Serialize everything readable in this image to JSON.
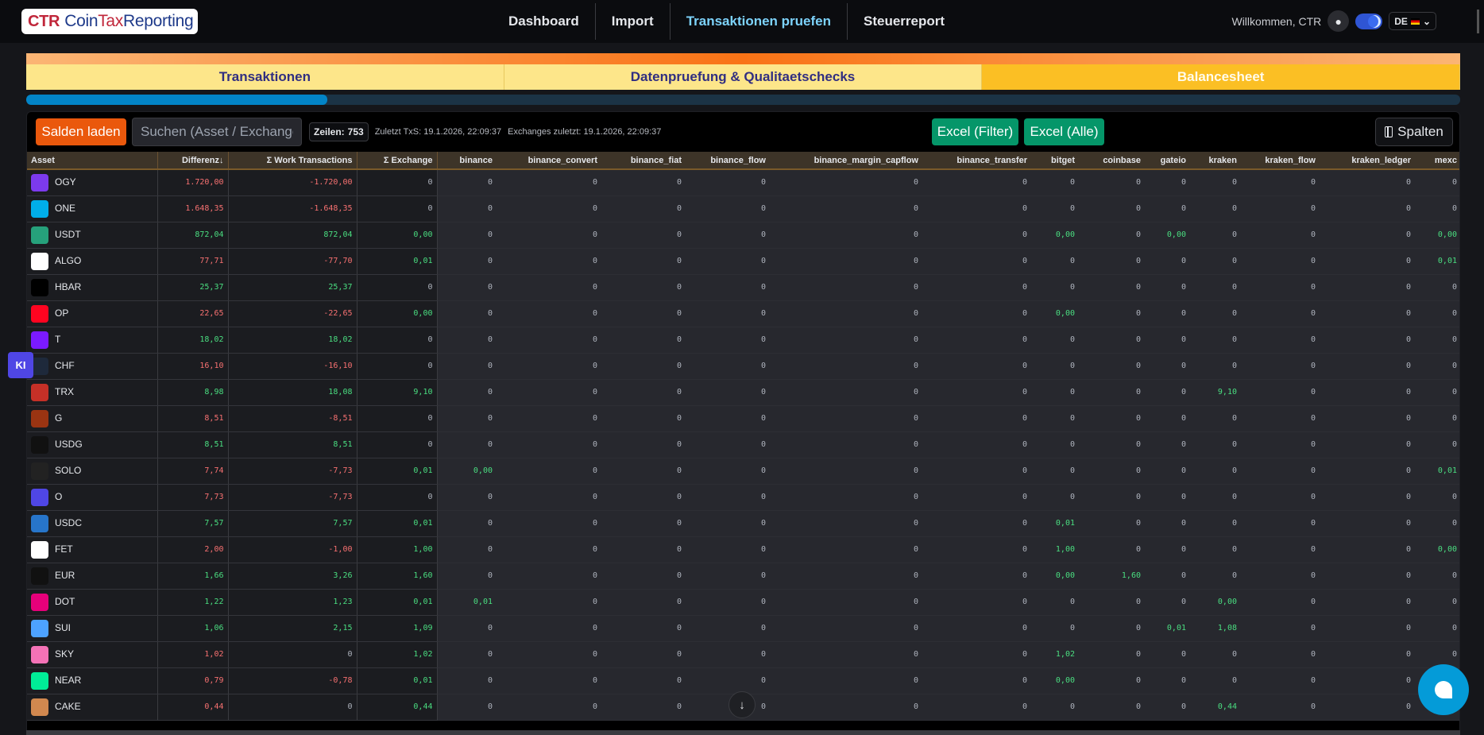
{
  "header": {
    "logo": "CoinTaxReporting",
    "nav": [
      "Dashboard",
      "Import",
      "Transaktionen pruefen",
      "Steuerreport"
    ],
    "active_nav": 2,
    "welcome": "Willkommen, CTR",
    "language": "DE"
  },
  "tabs": [
    "Transaktionen",
    "Datenpruefung & Qualitaetschecks",
    "Balancesheet"
  ],
  "active_tab": 2,
  "progress_percent": 21,
  "toolbar": {
    "load_label": "Salden laden",
    "search_placeholder": "Suchen (Asset / Exchange)",
    "rows_label": "Zeilen:",
    "rows_count": "753",
    "last_txs": "Zuletzt TxS: 19.1.2026, 22:09:37",
    "last_exchanges": "Exchanges zuletzt: 19.1.2026, 22:09:37",
    "excel_filter": "Excel (Filter)",
    "excel_all": "Excel (Alle)",
    "columns": "Spalten"
  },
  "ki_label": "KI",
  "scroll_down": "↓",
  "colors": {
    "positive": "#4ade80",
    "negative": "#f87171",
    "accent": "#ea580c",
    "excel": "#059669"
  },
  "table": {
    "columns": [
      "Asset",
      "Differenz↓",
      "Σ Work Transactions",
      "Σ Exchange",
      "binance",
      "binance_convert",
      "binance_fiat",
      "binance_flow",
      "binance_margin_capflow",
      "binance_transfer",
      "bitget",
      "coinbase",
      "gateio",
      "kraken",
      "kraken_flow",
      "kraken_ledger",
      "mexc"
    ],
    "rows": [
      {
        "asset": "OGY",
        "icon": "#7c3aed",
        "diff": "1.720,00",
        "neg": true,
        "work": "-1.720,00",
        "ex": "0",
        "cells": [
          "0",
          "0",
          "0",
          "0",
          "0",
          "0",
          "0",
          "0",
          "0",
          "0",
          "0",
          "0",
          "0"
        ]
      },
      {
        "asset": "ONE",
        "icon": "#00aee9",
        "diff": "1.648,35",
        "neg": true,
        "work": "-1.648,35",
        "ex": "0",
        "cells": [
          "0",
          "0",
          "0",
          "0",
          "0",
          "0",
          "0",
          "0",
          "0",
          "0",
          "0",
          "0",
          "0"
        ]
      },
      {
        "asset": "USDT",
        "icon": "#26a17b",
        "diff": "872,04",
        "neg": false,
        "work": "872,04",
        "ex": "0,00",
        "cells": [
          "0",
          "0",
          "0",
          "0",
          "0",
          "0",
          "0,00",
          "0",
          "0,00",
          "0",
          "0",
          "0",
          "0,00"
        ]
      },
      {
        "asset": "ALGO",
        "icon": "#ffffff",
        "diff": "77,71",
        "neg": true,
        "work": "-77,70",
        "ex": "0,01",
        "cells": [
          "0",
          "0",
          "0",
          "0",
          "0",
          "0",
          "0",
          "0",
          "0",
          "0",
          "0",
          "0",
          "0,01"
        ]
      },
      {
        "asset": "HBAR",
        "icon": "#000000",
        "diff": "25,37",
        "neg": false,
        "work": "25,37",
        "ex": "0",
        "cells": [
          "0",
          "0",
          "0",
          "0",
          "0",
          "0",
          "0",
          "0",
          "0",
          "0",
          "0",
          "0",
          "0"
        ]
      },
      {
        "asset": "OP",
        "icon": "#ff0420",
        "diff": "22,65",
        "neg": true,
        "work": "-22,65",
        "ex": "0,00",
        "cells": [
          "0",
          "0",
          "0",
          "0",
          "0",
          "0",
          "0,00",
          "0",
          "0",
          "0",
          "0",
          "0",
          "0"
        ]
      },
      {
        "asset": "T",
        "icon": "#7b1aff",
        "diff": "18,02",
        "neg": false,
        "work": "18,02",
        "ex": "0",
        "cells": [
          "0",
          "0",
          "0",
          "0",
          "0",
          "0",
          "0",
          "0",
          "0",
          "0",
          "0",
          "0",
          "0"
        ]
      },
      {
        "asset": "CHF",
        "icon": "#1e293b",
        "diff": "16,10",
        "neg": true,
        "work": "-16,10",
        "ex": "0",
        "cells": [
          "0",
          "0",
          "0",
          "0",
          "0",
          "0",
          "0",
          "0",
          "0",
          "0",
          "0",
          "0",
          "0"
        ]
      },
      {
        "asset": "TRX",
        "icon": "#c53027",
        "diff": "8,98",
        "neg": false,
        "work": "18,08",
        "ex": "9,10",
        "cells": [
          "0",
          "0",
          "0",
          "0",
          "0",
          "0",
          "0",
          "0",
          "0",
          "9,10",
          "0",
          "0",
          "0"
        ]
      },
      {
        "asset": "G",
        "icon": "#9a3412",
        "diff": "8,51",
        "neg": true,
        "work": "-8,51",
        "ex": "0",
        "cells": [
          "0",
          "0",
          "0",
          "0",
          "0",
          "0",
          "0",
          "0",
          "0",
          "0",
          "0",
          "0",
          "0"
        ]
      },
      {
        "asset": "USDG",
        "icon": "#111111",
        "diff": "8,51",
        "neg": false,
        "work": "8,51",
        "ex": "0",
        "cells": [
          "0",
          "0",
          "0",
          "0",
          "0",
          "0",
          "0",
          "0",
          "0",
          "0",
          "0",
          "0",
          "0"
        ]
      },
      {
        "asset": "SOLO",
        "icon": "#222222",
        "diff": "7,74",
        "neg": true,
        "work": "-7,73",
        "ex": "0,01",
        "cells": [
          "0,00",
          "0",
          "0",
          "0",
          "0",
          "0",
          "0",
          "0",
          "0",
          "0",
          "0",
          "0",
          "0,01"
        ]
      },
      {
        "asset": "O",
        "icon": "#4f46e5",
        "diff": "7,73",
        "neg": true,
        "work": "-7,73",
        "ex": "0",
        "cells": [
          "0",
          "0",
          "0",
          "0",
          "0",
          "0",
          "0",
          "0",
          "0",
          "0",
          "0",
          "0",
          "0"
        ]
      },
      {
        "asset": "USDC",
        "icon": "#2775ca",
        "diff": "7,57",
        "neg": false,
        "work": "7,57",
        "ex": "0,01",
        "cells": [
          "0",
          "0",
          "0",
          "0",
          "0",
          "0",
          "0,01",
          "0",
          "0",
          "0",
          "0",
          "0",
          "0"
        ]
      },
      {
        "asset": "FET",
        "icon": "#ffffff",
        "diff": "2,00",
        "neg": true,
        "work": "-1,00",
        "ex": "1,00",
        "cells": [
          "0",
          "0",
          "0",
          "0",
          "0",
          "0",
          "1,00",
          "0",
          "0",
          "0",
          "0",
          "0",
          "0,00"
        ]
      },
      {
        "asset": "EUR",
        "icon": "#111111",
        "diff": "1,66",
        "neg": false,
        "work": "3,26",
        "ex": "1,60",
        "cells": [
          "0",
          "0",
          "0",
          "0",
          "0",
          "0",
          "0,00",
          "1,60",
          "0",
          "0",
          "0",
          "0",
          "0"
        ]
      },
      {
        "asset": "DOT",
        "icon": "#e6007a",
        "diff": "1,22",
        "neg": false,
        "work": "1,23",
        "ex": "0,01",
        "cells": [
          "0,01",
          "0",
          "0",
          "0",
          "0",
          "0",
          "0",
          "0",
          "0",
          "0,00",
          "0",
          "0",
          "0"
        ]
      },
      {
        "asset": "SUI",
        "icon": "#4da2ff",
        "diff": "1,06",
        "neg": false,
        "work": "2,15",
        "ex": "1,09",
        "cells": [
          "0",
          "0",
          "0",
          "0",
          "0",
          "0",
          "0",
          "0",
          "0,01",
          "1,08",
          "0",
          "0",
          "0"
        ]
      },
      {
        "asset": "SKY",
        "icon": "#f472b6",
        "diff": "1,02",
        "neg": true,
        "work": "0",
        "ex": "1,02",
        "cells": [
          "0",
          "0",
          "0",
          "0",
          "0",
          "0",
          "1,02",
          "0",
          "0",
          "0",
          "0",
          "0",
          "0"
        ]
      },
      {
        "asset": "NEAR",
        "icon": "#00ec97",
        "diff": "0,79",
        "neg": true,
        "work": "-0,78",
        "ex": "0,01",
        "cells": [
          "0",
          "0",
          "0",
          "0",
          "0",
          "0",
          "0,00",
          "0",
          "0",
          "0",
          "0",
          "0",
          "0"
        ]
      },
      {
        "asset": "CAKE",
        "icon": "#d1884f",
        "diff": "0,44",
        "neg": true,
        "work": "0",
        "ex": "0,44",
        "cells": [
          "0",
          "0",
          "0",
          "0",
          "0",
          "0",
          "0",
          "0",
          "0",
          "0,44",
          "0",
          "0",
          "0"
        ]
      }
    ]
  }
}
